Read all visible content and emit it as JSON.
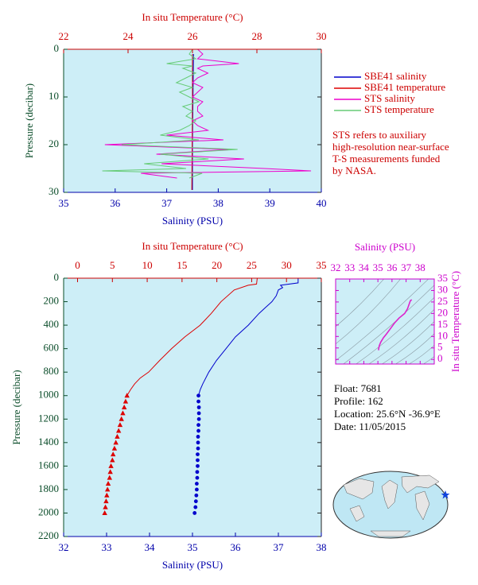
{
  "chart_data": [
    {
      "type": "profile",
      "x_label": "Salinity (PSU)",
      "x2_label": "In situ Temperature (°C)",
      "y_label": "Pressure (decibar)",
      "xlim": [
        35,
        40
      ],
      "xticks": [
        35,
        36,
        37,
        38,
        39,
        40
      ],
      "x2lim": [
        22,
        30
      ],
      "x2ticks": [
        22,
        24,
        26,
        28,
        30
      ],
      "ylim": [
        0,
        30
      ],
      "yticks": [
        0,
        10,
        20,
        30
      ],
      "y_reversed": true,
      "legend": "right",
      "annotation_lines": [
        "STS refers to auxiliary",
        "high-resolution near-surface",
        "T-S measurements funded",
        "by NASA."
      ],
      "series": [
        {
          "name": "SBE41 salinity",
          "color": "#0000cc",
          "axis": "x",
          "pressure": [
            1,
            10,
            20,
            29.5
          ],
          "values": [
            37.52,
            37.51,
            37.5,
            37.5
          ]
        },
        {
          "name": "SBE41 temperature",
          "color": "#dd0000",
          "axis": "x2",
          "pressure": [
            1,
            10,
            20,
            29.5
          ],
          "values": [
            26.0,
            26.0,
            25.99,
            25.98
          ]
        },
        {
          "name": "STS salinity",
          "color": "#ee00cc",
          "axis": "x",
          "pressure": [
            0,
            1,
            2,
            3,
            3.5,
            4,
            5,
            6,
            7,
            8,
            9,
            10,
            11,
            12,
            13,
            14,
            15,
            16,
            17,
            18,
            19,
            20,
            21,
            22,
            23,
            24,
            25,
            25.5,
            26,
            27
          ],
          "values": [
            37.6,
            37.7,
            37.6,
            38.4,
            37.7,
            37.6,
            37.8,
            37.6,
            37.5,
            37.7,
            37.6,
            37.5,
            37.7,
            37.6,
            37.6,
            37.7,
            37.5,
            37.6,
            37.8,
            37.0,
            38.1,
            35.8,
            38.2,
            36.8,
            38.5,
            36.9,
            38.9,
            39.8,
            36.5,
            37.2
          ]
        },
        {
          "name": "STS temperature",
          "color": "#66cc77",
          "axis": "x2",
          "pressure": [
            0,
            1,
            2,
            3,
            3.5,
            4,
            5,
            6,
            7,
            8,
            9,
            10,
            11,
            12,
            13,
            14,
            15,
            16,
            17,
            18,
            19,
            20,
            21,
            22,
            23,
            24,
            25,
            25.5,
            26,
            27
          ],
          "values": [
            26.0,
            25.9,
            26.1,
            25.2,
            26.0,
            25.7,
            26.1,
            25.8,
            25.5,
            26.0,
            25.6,
            25.9,
            26.2,
            25.7,
            26.0,
            25.8,
            26.1,
            25.9,
            25.6,
            25.0,
            26.2,
            23.8,
            27.4,
            25.0,
            26.5,
            24.5,
            25.8,
            23.2,
            26.3,
            25.9
          ]
        }
      ]
    },
    {
      "type": "profile",
      "x_label": "Salinity (PSU)",
      "x2_label": "In situ Temperature (°C)",
      "y_label": "Pressure (decibar)",
      "xlim": [
        32,
        38
      ],
      "xticks": [
        32,
        33,
        34,
        35,
        36,
        37,
        38
      ],
      "x2lim": [
        -2,
        35
      ],
      "x2ticks": [
        0,
        5,
        10,
        15,
        20,
        25,
        30,
        35
      ],
      "ylim": [
        0,
        2200
      ],
      "yticks": [
        0,
        200,
        400,
        600,
        800,
        1000,
        1200,
        1400,
        1600,
        1800,
        2000,
        2200
      ],
      "y_reversed": true,
      "series": [
        {
          "color": "#dd0000",
          "axis": "x2",
          "pressure": [
            0,
            50,
            60,
            100,
            200,
            300,
            400,
            500,
            600,
            700,
            800,
            850,
            900,
            950,
            1000
          ],
          "values": [
            25.8,
            25.7,
            24.5,
            22.5,
            20.6,
            19.2,
            17.6,
            15.4,
            13.5,
            11.8,
            10.2,
            9.0,
            8.2,
            7.6,
            7.1
          ]
        },
        {
          "color": "#dd0000",
          "axis": "x2",
          "marker": "triangle",
          "pressure": [
            1000,
            1050,
            1100,
            1150,
            1200,
            1250,
            1300,
            1350,
            1400,
            1450,
            1500,
            1550,
            1600,
            1650,
            1700,
            1750,
            1800,
            1850,
            1900,
            1950,
            2000
          ],
          "values": [
            7.1,
            6.9,
            6.7,
            6.5,
            6.3,
            6.1,
            5.9,
            5.7,
            5.5,
            5.3,
            5.1,
            5.0,
            4.8,
            4.7,
            4.6,
            4.4,
            4.3,
            4.2,
            4.1,
            4.0,
            3.9
          ]
        },
        {
          "color": "#0000cc",
          "axis": "x",
          "pressure": [
            0,
            40,
            60,
            80,
            100,
            150,
            200,
            250,
            300,
            400,
            500,
            600,
            700,
            800,
            900,
            950,
            1000
          ],
          "values": [
            37.46,
            37.46,
            37.05,
            37.1,
            37.0,
            36.95,
            36.85,
            36.7,
            36.55,
            36.3,
            36.0,
            35.78,
            35.56,
            35.38,
            35.24,
            35.18,
            35.14
          ]
        },
        {
          "color": "#0000cc",
          "axis": "x",
          "marker": "circle",
          "pressure": [
            1000,
            1050,
            1100,
            1150,
            1200,
            1250,
            1300,
            1350,
            1400,
            1450,
            1500,
            1550,
            1600,
            1650,
            1700,
            1750,
            1800,
            1850,
            1900,
            1950,
            2000
          ],
          "values": [
            35.14,
            35.14,
            35.15,
            35.15,
            35.15,
            35.14,
            35.14,
            35.13,
            35.13,
            35.13,
            35.12,
            35.12,
            35.12,
            35.11,
            35.11,
            35.1,
            35.1,
            35.09,
            35.08,
            35.07,
            35.05
          ]
        }
      ]
    },
    {
      "type": "line",
      "x_label": "Salinity (PSU)",
      "y_label": "In situ Temperature (°C)",
      "xlim": [
        32,
        39
      ],
      "xticks": [
        32,
        33,
        34,
        35,
        36,
        37,
        38
      ],
      "ylim": [
        -2,
        35
      ],
      "yticks": [
        0,
        5,
        10,
        15,
        20,
        25,
        30,
        35
      ],
      "series": [
        {
          "color": "#dd22cc",
          "x": [
            37.4,
            37.3,
            37.1,
            36.9,
            36.5,
            36.2,
            35.9,
            35.6,
            35.4,
            35.2,
            35.1,
            35.05,
            35.05
          ],
          "values": [
            26,
            25.5,
            22,
            20,
            18,
            16,
            13.5,
            11,
            9.5,
            7.5,
            6,
            4.5,
            4
          ]
        }
      ]
    }
  ],
  "float_info": [
    "Float:  7681",
    "Profile:  162",
    "Location:  25.6°N  -36.9°E",
    "Date:  11/05/2015"
  ]
}
